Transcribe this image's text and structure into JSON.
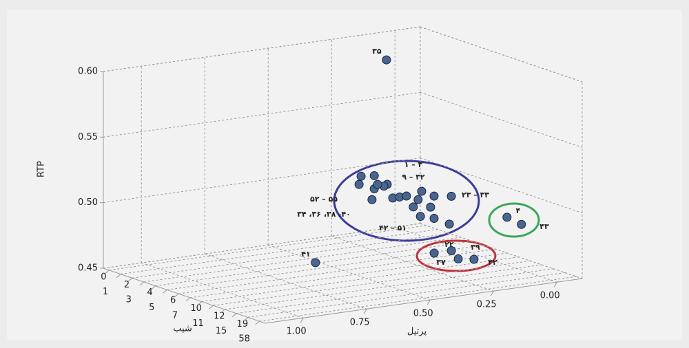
{
  "chart_data": {
    "type": "scatter3d",
    "y_label": "RTP",
    "x_label": "پرتیل",
    "z_label": "شیب",
    "ylim": [
      0.45,
      0.6
    ],
    "yticks": [
      {
        "value": 0.45,
        "label": "0.45"
      },
      {
        "value": 0.5,
        "label": "0.50"
      },
      0.55,
      {
        "value": 0.6,
        "label": "0.60"
      }
    ],
    "xlim": [
      1.15,
      -0.1
    ],
    "xticks": [
      {
        "value": 1,
        "label": "1.00"
      },
      0.75,
      {
        "value": 0.5,
        "label": "0.50"
      },
      0.25,
      {
        "value": 0,
        "label": "0.00"
      }
    ],
    "zcategories": [
      0,
      1,
      2,
      3,
      4,
      5,
      6,
      7,
      10,
      11,
      12,
      15,
      19,
      58
    ],
    "grid": true,
    "color": "#4a6590",
    "points": [
      {
        "x": 0.33,
        "y": 0.606,
        "z": 6,
        "label": "۳۵"
      },
      {
        "x": 0.61,
        "y": 0.459,
        "z": 6,
        "label": "۴۱"
      },
      {
        "x": 0.43,
        "y": 0.52,
        "z": 6
      },
      {
        "x": 0.378,
        "y": 0.519,
        "z": 6
      },
      {
        "x": 0.327,
        "y": 0.511,
        "z": 6
      },
      {
        "x": 0.438,
        "y": 0.514,
        "z": 6
      },
      {
        "x": 0.378,
        "y": 0.509,
        "z": 6
      },
      {
        "x": 0.34,
        "y": 0.51,
        "z": 6
      },
      {
        "x": 0.305,
        "y": 0.5,
        "z": 6
      },
      {
        "x": 0.278,
        "y": 0.5,
        "z": 6
      },
      {
        "x": 0.387,
        "y": 0.501,
        "z": 6
      },
      {
        "x": 0.251,
        "y": 0.5,
        "z": 6
      },
      {
        "x": 0.205,
        "y": 0.496,
        "z": 6
      },
      {
        "x": 0.191,
        "y": 0.502,
        "z": 6
      },
      {
        "x": 0.142,
        "y": 0.497,
        "z": 6
      },
      {
        "x": 0.074,
        "y": 0.495,
        "z": 6
      },
      {
        "x": 0.224,
        "y": 0.491,
        "z": 6
      },
      {
        "x": 0.156,
        "y": 0.489,
        "z": 6
      },
      {
        "x": 0.142,
        "y": 0.48,
        "z": 6
      },
      {
        "x": 0.196,
        "y": 0.483,
        "z": 6
      },
      {
        "x": 0.082,
        "y": 0.474,
        "z": 6
      },
      {
        "x": 0.365,
        "y": 0.512,
        "z": 6
      },
      {
        "x": 0.233,
        "y": 0.462,
        "z": 10
      },
      {
        "x": 0.165,
        "y": 0.462,
        "z": 10
      },
      {
        "x": 0.138,
        "y": 0.455,
        "z": 10
      },
      {
        "x": 0.076,
        "y": 0.453,
        "z": 10
      },
      {
        "x": 0.037,
        "y": 0.49,
        "z": 12
      },
      {
        "x": -0.02,
        "y": 0.483,
        "z": 12
      }
    ],
    "annotations": [
      "۱ – ۳",
      "۹ – ۳۲",
      "۵۲ – ۵۵",
      "۳۴ ،۳۶ ،۳۸ ،۴۰",
      "۴۲ – ۵۱",
      "۲۳ – ۳۳",
      "۴",
      "۴۳",
      "۲۲",
      "۳۹",
      "۳۷",
      "۴۲"
    ]
  }
}
